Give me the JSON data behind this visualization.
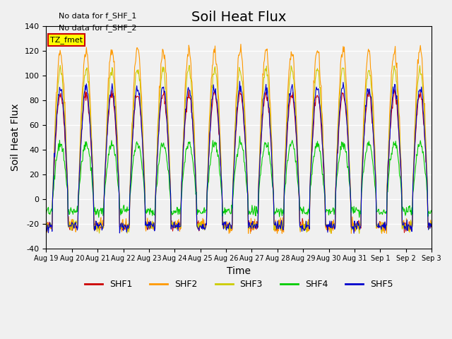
{
  "title": "Soil Heat Flux",
  "ylabel": "Soil Heat Flux",
  "xlabel": "Time",
  "annotations": [
    "No data for f_SHF_1",
    "No data for f_SHF_2"
  ],
  "legend_label": "TZ_fmet",
  "legend_box_color": "#ffff00",
  "legend_box_edge": "#cc0000",
  "series_names": [
    "SHF1",
    "SHF2",
    "SHF3",
    "SHF4",
    "SHF5"
  ],
  "series_colors": [
    "#cc0000",
    "#ff9900",
    "#cccc00",
    "#00cc00",
    "#0000cc"
  ],
  "ylim": [
    -40,
    140
  ],
  "yticks": [
    -40,
    -20,
    0,
    20,
    40,
    60,
    80,
    100,
    120,
    140
  ],
  "xtick_labels": [
    "Aug 19",
    "Aug 20",
    "Aug 21",
    "Aug 22",
    "Aug 23",
    "Aug 24",
    "Aug 25",
    "Aug 26",
    "Aug 27",
    "Aug 28",
    "Aug 29",
    "Aug 30",
    "Aug 31",
    "Sep 1",
    "Sep 2",
    "Sep 3"
  ],
  "bg_color": "#e8e8e8",
  "plot_bg_color": "#f0f0f0",
  "figsize": [
    6.4,
    4.8
  ],
  "dpi": 100,
  "num_days": 15,
  "title_fontsize": 14,
  "axis_label_fontsize": 10
}
